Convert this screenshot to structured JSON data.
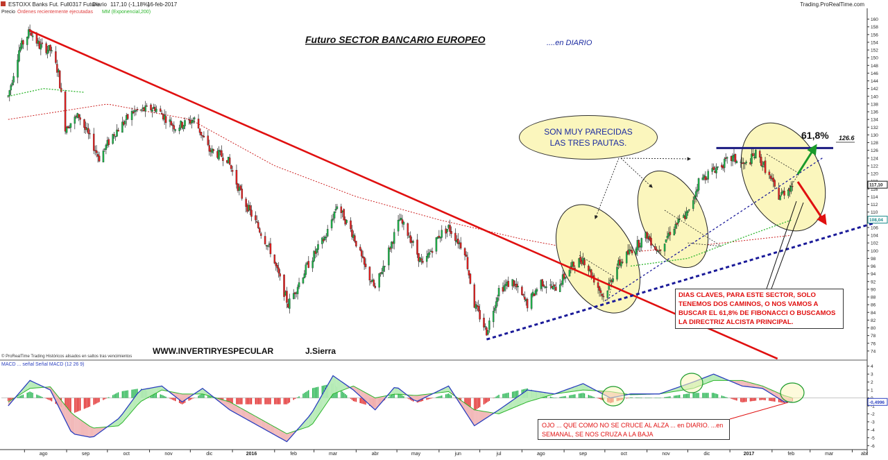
{
  "header": {
    "instrument": "ESTOXX Banks Fut. Full0317 Future",
    "period": "Diario",
    "last": "117,10 (-1,18%)",
    "date": "16-feb-2017",
    "source": "Trading.ProRealTime.com"
  },
  "legend_top": {
    "price_label": "Precio",
    "orders_label": "Órdenes recientemente ejecutadas",
    "ma_label": "MM (Exponencial,200)"
  },
  "titles": {
    "main": "Futuro  SECTOR BANCARIO EUROPEO",
    "sub": "....en DIARIO"
  },
  "annotations": {
    "bubble": "SON MUY PARECIDAS LAS TRES PAUTAS.",
    "fib_label": "61,8%",
    "fib_value": "126.6",
    "callout": "DIAS CLAVES, PARA ESTE SECTOR, SOLO TENEMOS DOS CAMINOS, O NOS VAMOS A BUSCAR EL 61,8% DE FIBONACCI O BUSCAMOS LA DIRECTRIZ ALCISTA PRINCIPAL.",
    "website": "WWW.INVERTIRYESPECULAR",
    "author": "J.Sierra",
    "macd_note": "OJO ... QUE COMO NO SE CRUCE AL ALZA ... en DIARIO. ...en SEMANAL, SE NOS CRUZA A LA BAJA",
    "footer_note": "© ProRealTime Trading Históricos alisados en saltos tras vencimientos"
  },
  "colors": {
    "up": "#1db24a",
    "down": "#e02020",
    "trend_down": "#e01010",
    "trend_up": "#1a1a99",
    "ma": "#2bb52b",
    "ma200": "#cc2020",
    "macd": "#2a3fbf",
    "signal": "#2bb52b",
    "ellipse_fill": "#fbf6bd",
    "price_tag": "#111111",
    "ma_tag": "#1a8a8a"
  },
  "chart_data": [
    {
      "type": "candlestick",
      "title": "Futuro  SECTOR BANCARIO EUROPEO",
      "x_labels": [
        "ago",
        "sep",
        "oct",
        "nov",
        "dic",
        "2016",
        "feb",
        "mar",
        "abr",
        "may",
        "jun",
        "jul",
        "ago",
        "sep",
        "oct",
        "nov",
        "dic",
        "2017",
        "feb",
        "mar",
        "abr"
      ],
      "y_ticks": [
        74,
        76,
        78,
        80,
        82,
        84,
        86,
        88,
        90,
        92,
        94,
        96,
        98,
        100,
        102,
        104,
        106,
        108,
        110,
        112,
        114,
        116,
        118,
        120,
        122,
        124,
        126,
        128,
        130,
        132,
        134,
        136,
        138,
        140,
        142,
        144,
        146,
        148,
        150,
        152,
        154,
        156,
        158,
        160
      ],
      "ylim": [
        72,
        161
      ],
      "last_price": "117,10",
      "ma_value": "108,04",
      "fib_level": 126.6,
      "price_path": [
        [
          "2015-07-20",
          140
        ],
        [
          "2015-07-28",
          152
        ],
        [
          "2015-08-05",
          157
        ],
        [
          "2015-08-12",
          153
        ],
        [
          "2015-08-20",
          152
        ],
        [
          "2015-08-26",
          146
        ],
        [
          "2015-08-31",
          132
        ],
        [
          "2015-09-10",
          135
        ],
        [
          "2015-09-25",
          124
        ],
        [
          "2015-10-05",
          130
        ],
        [
          "2015-10-20",
          136
        ],
        [
          "2015-11-05",
          137
        ],
        [
          "2015-11-20",
          132
        ],
        [
          "2015-12-04",
          134
        ],
        [
          "2015-12-15",
          126
        ],
        [
          "2015-12-28",
          124
        ],
        [
          "2016-01-08",
          114
        ],
        [
          "2016-01-20",
          106
        ],
        [
          "2016-01-29",
          100
        ],
        [
          "2016-02-11",
          86
        ],
        [
          "2016-02-25",
          96
        ],
        [
          "2016-03-10",
          104
        ],
        [
          "2016-03-18",
          112
        ],
        [
          "2016-03-30",
          104
        ],
        [
          "2016-04-07",
          96
        ],
        [
          "2016-04-15",
          90
        ],
        [
          "2016-04-25",
          100
        ],
        [
          "2016-05-03",
          108
        ],
        [
          "2016-05-10",
          104
        ],
        [
          "2016-05-20",
          96
        ],
        [
          "2016-06-01",
          104
        ],
        [
          "2016-06-08",
          106
        ],
        [
          "2016-06-20",
          100
        ],
        [
          "2016-06-27",
          86
        ],
        [
          "2016-07-06",
          79
        ],
        [
          "2016-07-15",
          90
        ],
        [
          "2016-07-25",
          92
        ],
        [
          "2016-08-05",
          86
        ],
        [
          "2016-08-15",
          92
        ],
        [
          "2016-08-25",
          90
        ],
        [
          "2016-09-07",
          96
        ],
        [
          "2016-09-15",
          98
        ],
        [
          "2016-09-30",
          88
        ],
        [
          "2016-10-10",
          96
        ],
        [
          "2016-10-20",
          100
        ],
        [
          "2016-11-01",
          104
        ],
        [
          "2016-11-09",
          100
        ],
        [
          "2016-11-20",
          106
        ],
        [
          "2016-12-02",
          110
        ],
        [
          "2016-12-09",
          118
        ],
        [
          "2016-12-20",
          121
        ],
        [
          "2017-01-03",
          124
        ],
        [
          "2017-01-12",
          122
        ],
        [
          "2017-01-20",
          125
        ],
        [
          "2017-01-26",
          122
        ],
        [
          "2017-02-06",
          114
        ],
        [
          "2017-02-16",
          117.1
        ]
      ],
      "ma200_path": [
        [
          "2015-07-20",
          134
        ],
        [
          "2015-10-01",
          138
        ],
        [
          "2015-12-01",
          134
        ],
        [
          "2016-02-01",
          122
        ],
        [
          "2016-04-01",
          114
        ],
        [
          "2016-06-01",
          108
        ],
        [
          "2016-08-01",
          103
        ],
        [
          "2016-10-01",
          99
        ],
        [
          "2016-12-01",
          101
        ],
        [
          "2017-02-16",
          104
        ]
      ],
      "ma_green_path": [
        [
          "2015-07-20",
          140
        ],
        [
          "2015-08-15",
          142
        ],
        [
          "2015-09-15",
          141
        ],
        [
          "2016-10-20",
          96
        ],
        [
          "2016-12-01",
          98
        ],
        [
          "2017-01-15",
          104
        ],
        [
          "2017-02-16",
          108.04
        ]
      ],
      "trendlines": [
        {
          "name": "bajista principal",
          "from": [
            "2015-08-05",
            157
          ],
          "to": [
            "2017-02-05",
            72
          ]
        },
        {
          "name": "directriz alcista",
          "from": [
            "2016-07-06",
            77
          ],
          "to": [
            "2017-04-25",
            108
          ]
        },
        {
          "name": "directriz alcista secundaria",
          "from": [
            "2016-10-01",
            87
          ],
          "to": [
            "2017-03-10",
            124
          ]
        },
        {
          "name": "fibonacci 61,8%",
          "from": [
            "2016-12-22",
            126.6
          ],
          "to": [
            "2017-03-18",
            126.6
          ]
        }
      ]
    },
    {
      "type": "line",
      "title": "MACD",
      "series": [
        {
          "name": "MACD",
          "values": "macd_path"
        },
        {
          "name": "Señal",
          "values": "signal_path"
        }
      ],
      "legend": "MACD ... señal Señal MACD (12 26 9)",
      "y_ticks": [
        4,
        3,
        2,
        1,
        0,
        -1,
        -2,
        -3,
        -4,
        -5,
        -6
      ],
      "ylim": [
        -6.5,
        4.5
      ],
      "current_macd": "-0,4996",
      "macd_path": [
        [
          "2015-07-20",
          -1
        ],
        [
          "2015-08-05",
          2.2
        ],
        [
          "2015-08-20",
          1.0
        ],
        [
          "2015-09-05",
          -4.5
        ],
        [
          "2015-09-20",
          -5.0
        ],
        [
          "2015-10-10",
          -2.5
        ],
        [
          "2015-10-25",
          1.0
        ],
        [
          "2015-11-10",
          1.5
        ],
        [
          "2015-11-25",
          -0.5
        ],
        [
          "2015-12-10",
          1.2
        ],
        [
          "2015-12-30",
          -1.5
        ],
        [
          "2016-01-20",
          -3.5
        ],
        [
          "2016-02-10",
          -5.5
        ],
        [
          "2016-02-28",
          -2.0
        ],
        [
          "2016-03-15",
          2.8
        ],
        [
          "2016-03-30",
          1.0
        ],
        [
          "2016-04-15",
          -1.5
        ],
        [
          "2016-04-30",
          1.5
        ],
        [
          "2016-05-15",
          -0.5
        ],
        [
          "2016-06-08",
          1.5
        ],
        [
          "2016-06-27",
          -3.5
        ],
        [
          "2016-07-15",
          -1.5
        ],
        [
          "2016-08-05",
          1.0
        ],
        [
          "2016-08-25",
          0.5
        ],
        [
          "2016-09-15",
          1.8
        ],
        [
          "2016-10-05",
          0.0
        ],
        [
          "2016-10-20",
          0.5
        ],
        [
          "2016-11-10",
          0.5
        ],
        [
          "2016-12-05",
          2.0
        ],
        [
          "2016-12-20",
          3.0
        ],
        [
          "2017-01-10",
          1.5
        ],
        [
          "2017-01-25",
          1.2
        ],
        [
          "2017-02-10",
          -0.5
        ],
        [
          "2017-02-16",
          -0.4996
        ]
      ],
      "signal_path": [
        [
          "2015-07-20",
          -0.5
        ],
        [
          "2015-08-05",
          1.2
        ],
        [
          "2015-08-20",
          1.4
        ],
        [
          "2015-09-05",
          -2.0
        ],
        [
          "2015-09-20",
          -3.8
        ],
        [
          "2015-10-10",
          -3.5
        ],
        [
          "2015-10-25",
          -0.5
        ],
        [
          "2015-11-10",
          1.0
        ],
        [
          "2015-11-25",
          0.5
        ],
        [
          "2015-12-10",
          0.5
        ],
        [
          "2015-12-30",
          -0.5
        ],
        [
          "2016-01-20",
          -2.5
        ],
        [
          "2016-02-10",
          -4.5
        ],
        [
          "2016-02-28",
          -3.5
        ],
        [
          "2016-03-15",
          0.5
        ],
        [
          "2016-03-30",
          1.5
        ],
        [
          "2016-04-15",
          0.0
        ],
        [
          "2016-04-30",
          0.5
        ],
        [
          "2016-05-15",
          0.3
        ],
        [
          "2016-06-08",
          0.8
        ],
        [
          "2016-06-27",
          -1.5
        ],
        [
          "2016-07-15",
          -2.0
        ],
        [
          "2016-08-05",
          -0.5
        ],
        [
          "2016-08-25",
          0.5
        ],
        [
          "2016-09-15",
          1.0
        ],
        [
          "2016-10-05",
          0.8
        ],
        [
          "2016-10-20",
          0.4
        ],
        [
          "2016-11-10",
          0.5
        ],
        [
          "2016-12-05",
          1.2
        ],
        [
          "2016-12-20",
          2.2
        ],
        [
          "2017-01-10",
          2.2
        ],
        [
          "2017-01-25",
          1.5
        ],
        [
          "2017-02-10",
          0.3
        ],
        [
          "2017-02-16",
          0.0
        ]
      ]
    }
  ]
}
